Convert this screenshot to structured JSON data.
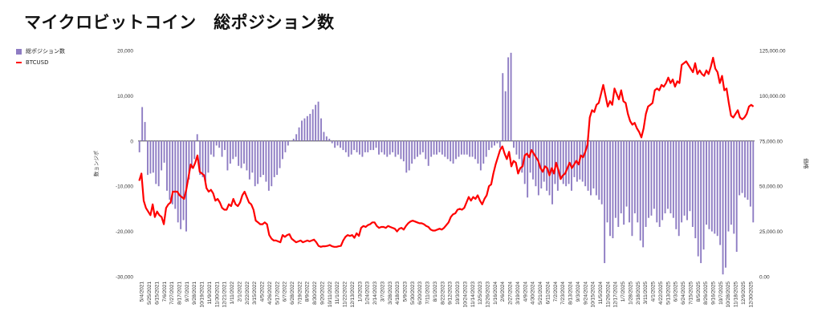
{
  "chart_data": {
    "type": "bar+line",
    "title": "マイクロビットコイン　総ポジション数",
    "legend": {
      "placement": "top-left",
      "entries": [
        "総ポジション数",
        "BTCUSD"
      ]
    },
    "ylabel_left": "数ョンジポ",
    "ylabel_right": "価格",
    "ylim_left": [
      -30000,
      20000
    ],
    "ylim_right": [
      0,
      125000
    ],
    "y_ticks_left": [
      "20,000",
      "10,000",
      "0",
      "-10,000",
      "-20,000",
      "-30,000"
    ],
    "y_ticks_right": [
      "125,000.00",
      "100,000.00",
      "75,000.00",
      "50,000.00",
      "25,000.00",
      "0.00"
    ],
    "x_tick_labels": [
      "5/4/2021",
      "5/25/2021",
      "6/15/2021",
      "7/6/2021",
      "7/27/2021",
      "8/17/2021",
      "9/7/2021",
      "9/28/2021",
      "10/19/2021",
      "11/9/2021",
      "11/30/2021",
      "12/21/2021",
      "1/11/2022",
      "2/1/2022",
      "2/22/2022",
      "3/15/2022",
      "4/5/2022",
      "4/26/2022",
      "5/17/2022",
      "6/7/2022",
      "6/28/2022",
      "7/19/2022",
      "8/9/2022",
      "8/30/2022",
      "9/20/2022",
      "10/11/2022",
      "11/1/2022",
      "11/22/2022",
      "12/13/2022",
      "1/3/2023",
      "1/24/2023",
      "2/14/2023",
      "3/7/2023",
      "3/28/2023",
      "4/18/2023",
      "5/9/2023",
      "5/30/2023",
      "6/20/2023",
      "7/11/2023",
      "8/1/2023",
      "8/22/2023",
      "9/12/2023",
      "10/3/2023",
      "10/24/2023",
      "11/14/2023",
      "12/5/2023",
      "12/26/2023",
      "1/16/2024",
      "2/6/2024",
      "2/27/2024",
      "3/19/2024",
      "4/9/2024",
      "4/30/2024",
      "5/21/2024",
      "6/11/2024",
      "7/2/2024",
      "7/23/2024",
      "8/13/2024",
      "9/3/2024",
      "9/24/2024",
      "10/15/2024",
      "11/5/2024",
      "11/26/2024",
      "12/17/2024",
      "1/7/2025",
      "1/28/2025",
      "2/18/2025",
      "3/11/2025",
      "4/1/2025",
      "4/22/2025",
      "5/13/2025",
      "6/3/2025",
      "6/24/2025",
      "7/15/2025",
      "8/5/2025",
      "8/26/2025",
      "9/16/2025",
      "10/7/2025",
      "10/28/2025",
      "11/18/2025",
      "12/9/2025",
      "12/30/2025"
    ],
    "series": [
      {
        "name": "総ポジション数",
        "type": "bar",
        "color": "#8e7cc3",
        "values": [
          -2500,
          7500,
          4200,
          -7500,
          -7200,
          -7000,
          -9500,
          -10000,
          -6500,
          -4800,
          -11000,
          -13000,
          -14000,
          -15000,
          -18000,
          -19500,
          -17500,
          -20000,
          -8500,
          -6000,
          -4000,
          1500,
          -7500,
          -8000,
          -9000,
          -7000,
          -3000,
          -3500,
          -1000,
          -1500,
          -3500,
          -2000,
          -6500,
          -5000,
          -4000,
          -3500,
          -5500,
          -6000,
          -5000,
          -6500,
          -8500,
          -7000,
          -10000,
          -9500,
          -8000,
          -7500,
          -9000,
          -11000,
          -10000,
          -8000,
          -7500,
          -6000,
          -4000,
          -2500,
          -1000,
          0,
          500,
          1500,
          3000,
          4500,
          5000,
          5500,
          6000,
          7000,
          8000,
          8700,
          5000,
          2000,
          1000,
          500,
          -500,
          -1500,
          -1000,
          -1500,
          -2000,
          -2500,
          -3500,
          -3000,
          -2000,
          -2500,
          -3000,
          -3500,
          -2500,
          -2500,
          -2000,
          -2000,
          -1500,
          -3000,
          -2500,
          -3000,
          -3500,
          -3000,
          -2500,
          -3500,
          -3000,
          -4000,
          -4500,
          -7000,
          -6500,
          -5000,
          -4000,
          -3500,
          -3000,
          -2500,
          -4000,
          -5500,
          -3500,
          -3000,
          -3000,
          -2500,
          -3000,
          -3500,
          -4000,
          -4500,
          -5000,
          -4000,
          -3500,
          -3000,
          -3000,
          -3000,
          -3500,
          -3500,
          -4000,
          -5000,
          -6500,
          -5000,
          -3500,
          -2000,
          -1500,
          -1000,
          -500,
          -1500,
          15000,
          11000,
          18500,
          19500,
          -1500,
          -3000,
          -4000,
          -7000,
          -9500,
          -12500,
          -7000,
          -8500,
          -10000,
          -12000,
          -10500,
          -9000,
          -11000,
          -12000,
          -14000,
          -9500,
          -11000,
          -8500,
          -9500,
          -10000,
          -9500,
          -11000,
          -8000,
          -9000,
          -8500,
          -9000,
          -10000,
          -11000,
          -12000,
          -10500,
          -12000,
          -13000,
          -14000,
          -27000,
          -18000,
          -21000,
          -21500,
          -17000,
          -19000,
          -16000,
          -18500,
          -14500,
          -18000,
          -21000,
          -16000,
          -18000,
          -22000,
          -23500,
          -19000,
          -17000,
          -16500,
          -15000,
          -18000,
          -19000,
          -17500,
          -16000,
          -15000,
          -16000,
          -17000,
          -19500,
          -21000,
          -18000,
          -16500,
          -17500,
          -15500,
          -19000,
          -21500,
          -25500,
          -27000,
          -24000,
          -18500,
          -19500,
          -20000,
          -20500,
          -21000,
          -23000,
          -29500,
          -28000,
          -20000,
          -18500,
          -20500,
          -24500,
          -12000,
          -11500,
          -12500,
          -13000,
          -14500,
          -18000
        ]
      },
      {
        "name": "BTCUSD",
        "type": "line",
        "color": "#ff0000",
        "values": [
          53000,
          57000,
          42000,
          38000,
          36000,
          34000,
          40000,
          33000,
          36000,
          34000,
          33000,
          29000,
          38000,
          40000,
          41000,
          47000,
          47000,
          47000,
          45000,
          44000,
          43000,
          48000,
          55000,
          62000,
          60000,
          63000,
          67000,
          58000,
          57000,
          56000,
          49000,
          47000,
          48000,
          46000,
          42000,
          43000,
          41000,
          38000,
          37000,
          37000,
          40000,
          39000,
          43000,
          40000,
          39000,
          41000,
          45000,
          47000,
          44000,
          41000,
          40000,
          37000,
          31000,
          30000,
          29000,
          29000,
          30000,
          29000,
          23000,
          21000,
          20000,
          20000,
          19500,
          19000,
          23000,
          22000,
          23000,
          23500,
          21000,
          20000,
          19000,
          19500,
          20000,
          19000,
          19500,
          20000,
          19500,
          20000,
          20500,
          19000,
          17000,
          16500,
          16800,
          16800,
          17000,
          17500,
          16800,
          16500,
          16500,
          16800,
          17000,
          20000,
          22000,
          23000,
          22500,
          23000,
          21500,
          24000,
          22500,
          27000,
          28000,
          27500,
          28500,
          29000,
          30000,
          30000,
          28000,
          27000,
          27500,
          27500,
          27000,
          28000,
          27500,
          27000,
          26500,
          25000,
          26500,
          27000,
          26000,
          28000,
          29500,
          30500,
          31000,
          30500,
          30000,
          29500,
          29500,
          29000,
          28000,
          27500,
          26000,
          25500,
          25500,
          26000,
          26500,
          26000,
          27000,
          28500,
          30000,
          33000,
          34500,
          35000,
          37000,
          37500,
          37000,
          38000,
          41000,
          44000,
          42000,
          44000,
          43000,
          45000,
          42000,
          40000,
          43000,
          45000,
          50000,
          51000,
          57000,
          62000,
          66000,
          70000,
          72000,
          68000,
          65000,
          69000,
          61000,
          64000,
          63000,
          57000,
          60000,
          61000,
          67000,
          68000,
          66000,
          70000,
          68000,
          66000,
          64000,
          60000,
          58000,
          61000,
          60000,
          56000,
          60000,
          57000,
          63000,
          59000,
          54000,
          56000,
          57000,
          60000,
          63000,
          60000,
          62000,
          64000,
          62000,
          67000,
          66000,
          69000,
          73000,
          88000,
          92000,
          91000,
          95000,
          96000,
          101000,
          106000,
          100000,
          94000,
          97000,
          95000,
          104000,
          101000,
          98000,
          103000,
          97000,
          96000,
          90000,
          86000,
          84000,
          85000,
          82000,
          80000,
          77000,
          82000,
          90000,
          94000,
          95000,
          96000,
          103000,
          104000,
          103000,
          106000,
          105000,
          107000,
          110000,
          107000,
          109000,
          105000,
          108000,
          107000,
          117000,
          118000,
          119000,
          117000,
          115000,
          113000,
          118000,
          112000,
          114000,
          112000,
          111000,
          114000,
          112000,
          116000,
          121000,
          115000,
          113000,
          107000,
          111000,
          103000,
          104000,
          96000,
          89000,
          88000,
          90000,
          92000,
          88000,
          87000,
          88000,
          90000,
          94000,
          95000,
          94000
        ]
      }
    ]
  }
}
